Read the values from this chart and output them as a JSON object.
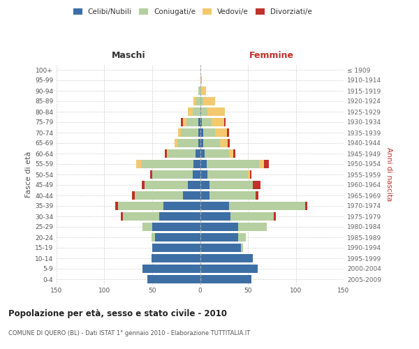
{
  "age_groups": [
    "0-4",
    "5-9",
    "10-14",
    "15-19",
    "20-24",
    "25-29",
    "30-34",
    "35-39",
    "40-44",
    "45-49",
    "50-54",
    "55-59",
    "60-64",
    "65-69",
    "70-74",
    "75-79",
    "80-84",
    "85-89",
    "90-94",
    "95-99",
    "100+"
  ],
  "birth_years": [
    "2005-2009",
    "2000-2004",
    "1995-1999",
    "1990-1994",
    "1985-1989",
    "1980-1984",
    "1975-1979",
    "1970-1974",
    "1965-1969",
    "1960-1964",
    "1955-1959",
    "1950-1954",
    "1945-1949",
    "1940-1944",
    "1935-1939",
    "1930-1934",
    "1925-1929",
    "1920-1924",
    "1915-1919",
    "1910-1914",
    "≤ 1909"
  ],
  "male": {
    "celibi": [
      55,
      60,
      51,
      50,
      47,
      50,
      43,
      38,
      18,
      13,
      8,
      7,
      5,
      2,
      2,
      2,
      0,
      0,
      0,
      0,
      0
    ],
    "coniugati": [
      0,
      0,
      0,
      0,
      4,
      10,
      38,
      48,
      50,
      45,
      42,
      55,
      28,
      22,
      18,
      12,
      8,
      4,
      2,
      0,
      0
    ],
    "vedovi": [
      0,
      0,
      0,
      0,
      0,
      0,
      0,
      0,
      0,
      0,
      0,
      5,
      2,
      3,
      3,
      4,
      5,
      3,
      0,
      0,
      0
    ],
    "divorziati": [
      0,
      0,
      0,
      0,
      0,
      0,
      2,
      3,
      3,
      3,
      2,
      0,
      2,
      0,
      0,
      2,
      0,
      0,
      0,
      0,
      0
    ]
  },
  "female": {
    "nubili": [
      54,
      60,
      55,
      43,
      40,
      40,
      32,
      30,
      10,
      10,
      8,
      7,
      5,
      3,
      3,
      2,
      1,
      0,
      0,
      0,
      0
    ],
    "coniugate": [
      0,
      0,
      0,
      2,
      8,
      30,
      45,
      80,
      48,
      45,
      42,
      55,
      25,
      18,
      13,
      10,
      7,
      3,
      1,
      0,
      0
    ],
    "vedove": [
      0,
      0,
      0,
      0,
      0,
      0,
      0,
      0,
      0,
      0,
      2,
      5,
      5,
      8,
      12,
      13,
      18,
      13,
      5,
      2,
      0
    ],
    "divorziate": [
      0,
      0,
      0,
      0,
      0,
      0,
      2,
      2,
      3,
      8,
      2,
      5,
      2,
      2,
      2,
      2,
      0,
      0,
      0,
      0,
      0
    ]
  },
  "colors": {
    "celibi": "#3d6fa5",
    "coniugati": "#b5cfa0",
    "vedovi": "#f2c96e",
    "divorziati": "#c0322a"
  },
  "xlim": 150,
  "title": "Popolazione per età, sesso e stato civile - 2010",
  "subtitle": "COMUNE DI QUERO (BL) - Dati ISTAT 1° gennaio 2010 - Elaborazione TUTTITALIA.IT",
  "ylabel_left": "Fasce di età",
  "ylabel_right": "Anni di nascita",
  "xlabel_maschi": "Maschi",
  "xlabel_femmine": "Femmine",
  "bg_color": "#ffffff",
  "grid_color": "#cccccc"
}
